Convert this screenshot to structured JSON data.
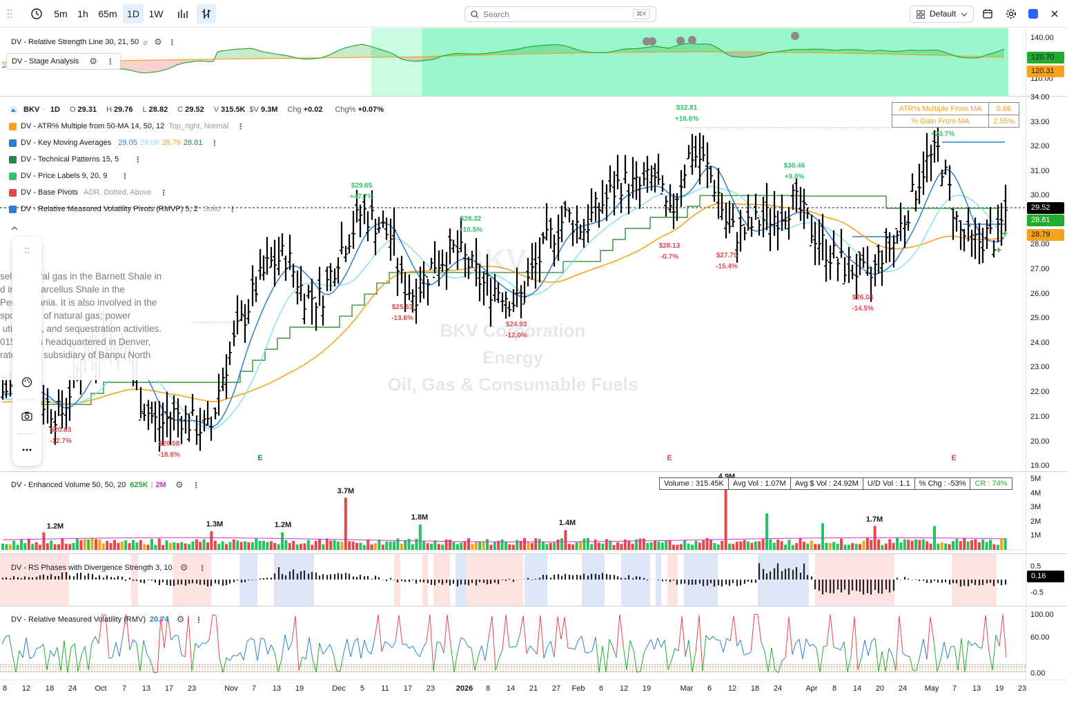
{
  "toolbar": {
    "intervals": [
      "5m",
      "1h",
      "65m",
      "1D",
      "1W"
    ],
    "active_interval": "1D",
    "search_placeholder": "Search",
    "search_shortcut": "⌘K",
    "layout_label": "Default"
  },
  "symbol": {
    "ticker": "BKV",
    "interval": "1D",
    "open_label": "O",
    "open": "29.31",
    "high_label": "H",
    "high": "29.76",
    "low_label": "L",
    "low": "28.82",
    "close_label": "C",
    "close": "29.52",
    "volume_label": "V",
    "volume": "315.5K",
    "dollar_volume_label": "$V",
    "dollar_volume": "9.3M",
    "chg_label": "Chg",
    "chg": "+0.02",
    "chg_pct_label": "Chg%",
    "chg_pct": "+0.07%"
  },
  "top_pane": {
    "indicator1": "DV - Relative Strength Line 30, 21, 50",
    "indicator2": "DV - Stage Analysis",
    "axis": [
      "140.00",
      "120.00",
      "110.00"
    ],
    "badge1": "120.70",
    "badge2": "120.31"
  },
  "price_indicators": [
    {
      "name": "DV - ATR% Multiple from 50-MA 14, 50, 12",
      "extra": "Top_right, Normal",
      "color": "#f7a21b"
    },
    {
      "name": "DV - Key Moving Averages",
      "extra": "",
      "color": "#2a7fd4"
    },
    {
      "name": "DV - Technical Patterns 15, 5",
      "extra": "",
      "color": "#1f8c4c"
    },
    {
      "name": "DV - Price Labels 9, 20, 9",
      "extra": "",
      "color": "#2fc667"
    },
    {
      "name": "DV - Base Pivots",
      "extra": "ADR, Dotted, Above",
      "color": "#e5474b"
    },
    {
      "name": "DV - Relative Measured Volatility Pivots (RMVP) 5, 2",
      "extra": "Solid",
      "color": "#2a7fd4"
    }
  ],
  "ma_values": {
    "ma1": "29.05",
    "ma2": "29.08",
    "ma3": "28.79",
    "ma4": "28.81"
  },
  "atr_table": [
    {
      "label": "ATR% Multiple From MA",
      "value": "0.66"
    },
    {
      "label": "% Gain From MA",
      "value": "2.55%"
    }
  ],
  "description": "sells natural gas in the Barnett Shale in\nd in the Marcellus Shale in the\nPennsylvania. It is also involved in the\nsportation of natural gas; power\n utilization, and sequestration activities.\n015 and is headquartered in Denver,\nrates as a subsidiary of Banpu North",
  "watermark": {
    "ticker": "BKV",
    "company": "BKV Corporation",
    "industry": "Energy",
    "sector": "Oil, Gas & Consumable Fuels"
  },
  "price_axis": [
    "34.00",
    "33.00",
    "32.00",
    "31.00",
    "30.00",
    "29.00",
    "28.00",
    "27.00",
    "26.00",
    "25.00",
    "24.00",
    "23.00",
    "22.00",
    "21.00",
    "20.00",
    "19.00"
  ],
  "price_badges": {
    "last": "29.52",
    "ma_green": "28.81",
    "ma_orange": "28.79"
  },
  "price_labels": [
    {
      "price": "$29.65",
      "pct": "+47.7%",
      "kind": "high"
    },
    {
      "price": "$28.32",
      "pct": "+10.5%",
      "kind": "high"
    },
    {
      "price": "$32.81",
      "pct": "+16.6%",
      "kind": "high"
    },
    {
      "price": "$30.46",
      "pct": "+9.8%",
      "kind": "high"
    },
    {
      "price": "$32.20",
      "pct": "+23.7%",
      "kind": "high"
    },
    {
      "price": "$20.63",
      "pct": "-12.7%",
      "kind": "low"
    },
    {
      "price": "$20.08",
      "pct": "-18.6%",
      "kind": "low"
    },
    {
      "price": "$25.63",
      "pct": "-13.6%",
      "kind": "low"
    },
    {
      "price": "$24.93",
      "pct": "-12.0%",
      "kind": "low"
    },
    {
      "price": "$28.13",
      "pct": "-0.7%",
      "kind": "low"
    },
    {
      "price": "$27.75",
      "pct": "-15.4%",
      "kind": "low"
    },
    {
      "price": "$26.04",
      "pct": "-14.5%",
      "kind": "low"
    }
  ],
  "earnings_markers": [
    "E",
    "E",
    "E"
  ],
  "volume_pane": {
    "name": "DV - Enhanced Volume 50, 50, 20",
    "v1": "625K",
    "v2": "2M",
    "axis": [
      "5M",
      "4M",
      "3M",
      "2M",
      "1M"
    ],
    "peak_labels": [
      "1.2M",
      "1.3M",
      "1.2M",
      "3.7M",
      "1.8M",
      "1.4M",
      "4.9M",
      "1.7M"
    ],
    "table": [
      "Volume : 315.45K",
      "Avg Vol : 1.07M",
      "Avg $ Vol : 24.92M",
      "U/D Vol : 1.1",
      "% Chg : -53%",
      "CR : 74%"
    ]
  },
  "rs_pane": {
    "name": "DV - RS Phases with Divergence Strength 3, 10",
    "axis": [
      "0.5",
      "-0.5"
    ],
    "badge": "0.16"
  },
  "rmv_pane": {
    "name": "DV - Relative Measured Volatility (RMV)",
    "value": "20.74",
    "axis": [
      "100.00",
      "60.00",
      "0.00"
    ]
  },
  "time_axis": [
    "8",
    "12",
    "18",
    "24",
    "Oct",
    "7",
    "13",
    "17",
    "23",
    "Nov",
    "7",
    "13",
    "19",
    "Dec",
    "5",
    "11",
    "17",
    "23",
    "2026",
    "8",
    "14",
    "21",
    "27",
    "Feb",
    "6",
    "12",
    "19",
    "Mar",
    "6",
    "12",
    "18",
    "24",
    "Apr",
    "8",
    "14",
    "20",
    "24",
    "May",
    "7",
    "13",
    "19",
    "23"
  ],
  "colors": {
    "up": "#22ab2f",
    "down": "#e5474b",
    "accent": "#2962ff",
    "stage_green": "#98f5cc"
  }
}
